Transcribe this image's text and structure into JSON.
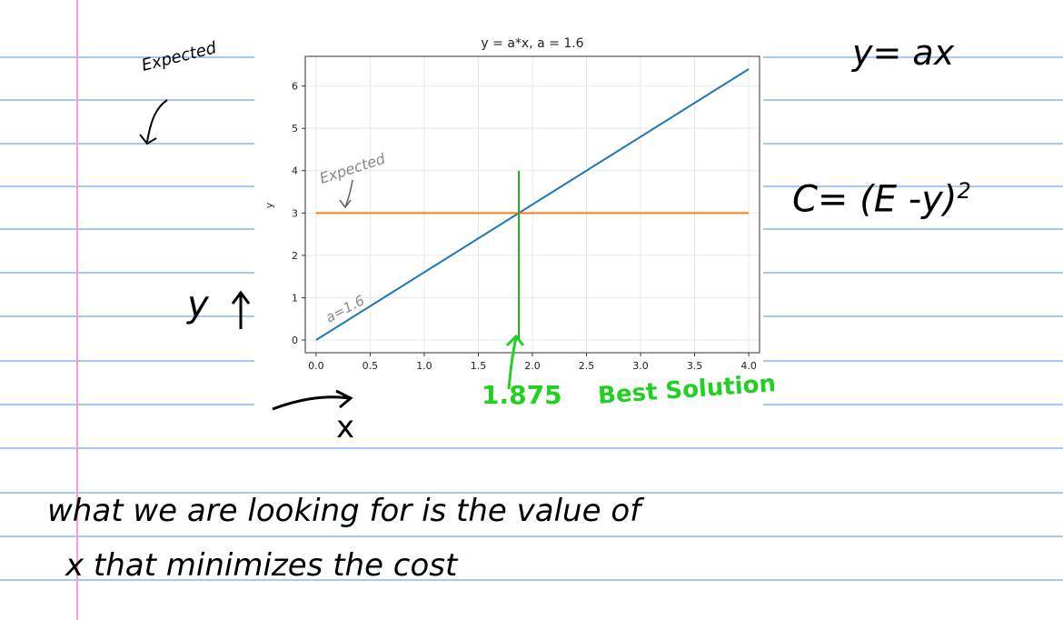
{
  "chart_data": {
    "type": "line",
    "title": "y = a*x, a = 1.6",
    "xlabel": "",
    "ylabel": "y",
    "xlim": [
      -0.1,
      4.1
    ],
    "ylim": [
      -0.3,
      6.7
    ],
    "xticks": [
      0.0,
      0.5,
      1.0,
      1.5,
      2.0,
      2.5,
      3.0,
      3.5,
      4.0
    ],
    "xtick_labels": [
      "0.0",
      "0.5",
      "1.0",
      "1.5",
      "2.0",
      "2.5",
      "3.0",
      "3.5",
      "4.0"
    ],
    "yticks": [
      0,
      1,
      2,
      3,
      4,
      5,
      6
    ],
    "ytick_labels": [
      "0",
      "1",
      "2",
      "3",
      "4",
      "5",
      "6"
    ],
    "grid": true,
    "series": [
      {
        "color": "#1f77b4",
        "x": [
          0.0,
          4.0
        ],
        "y": [
          0.0,
          6.4
        ]
      },
      {
        "color": "#ff7f0e",
        "x": [
          0.0,
          4.0
        ],
        "y": [
          3.0,
          3.0
        ]
      },
      {
        "color": "#2ca02c",
        "x": [
          1.875,
          1.875
        ],
        "y": [
          0.0,
          4.0
        ]
      }
    ],
    "annotations": {
      "expected": "Expected",
      "a_label": "a=1.6"
    }
  },
  "notes": {
    "top_left": "Expected",
    "y_axis_hint": "y",
    "x_axis_hint": "x",
    "formula": "y= ax",
    "cost_formula": "C= (E -y)",
    "cost_exponent": "2",
    "best_value": "1.875",
    "best_label": "Best Solution",
    "sentence_line1": "what we are looking for is the value of",
    "sentence_line2": "x that minimizes the cost"
  },
  "colors": {
    "rule": "#a8c8f4",
    "margin": "#f0a0d8",
    "annotation_green": "#22d022"
  }
}
